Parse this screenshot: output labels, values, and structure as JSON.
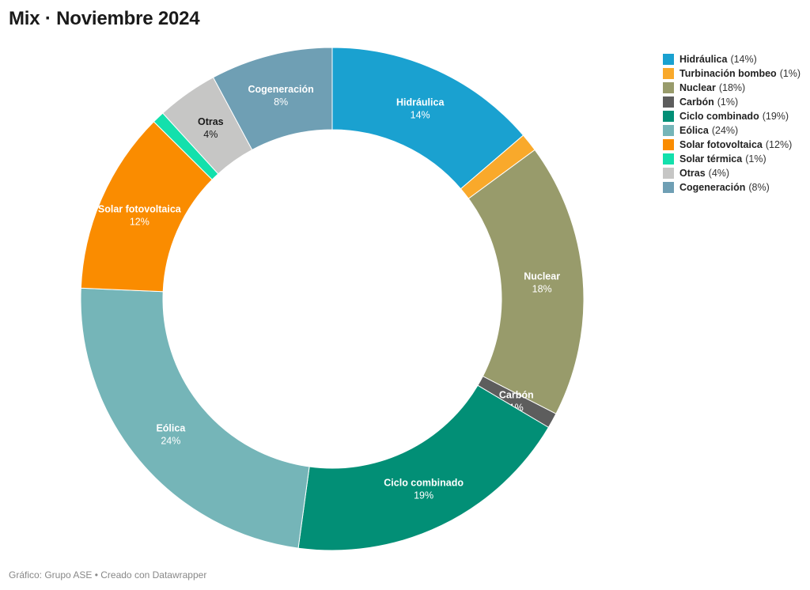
{
  "title": "Mix · Noviembre 2024",
  "footer": "Gráfico: Grupo ASE • Creado con Datawrapper",
  "chart_data": {
    "type": "pie",
    "variant": "donut",
    "title": "Mix · Noviembre 2024",
    "legend_position": "top-right",
    "slices": [
      {
        "name": "Hidráulica",
        "value": 14,
        "label": "14%",
        "color": "#1aa1d0",
        "label_color": "#ffffff",
        "legend_pct": "(14%)"
      },
      {
        "name": "Turbinación bombeo",
        "value": 1.2,
        "label": "",
        "color": "#f9a92b",
        "label_color": "#ffffff",
        "legend_pct": "(1%)"
      },
      {
        "name": "Nuclear",
        "value": 18,
        "label": "18%",
        "color": "#989b6b",
        "label_color": "#ffffff",
        "legend_pct": "(18%)"
      },
      {
        "name": "Carbón",
        "value": 1,
        "label": "1%",
        "color": "#5d5d5d",
        "label_color": "#ffffff",
        "legend_pct": "(1%)"
      },
      {
        "name": "Ciclo combinado",
        "value": 19,
        "label": "19%",
        "color": "#028f76",
        "label_color": "#ffffff",
        "legend_name": "Ciclo combinado ",
        "legend_pct": "(19%)"
      },
      {
        "name": "Eólica",
        "value": 24,
        "label": "24%",
        "color": "#75b5b8",
        "label_color": "#ffffff",
        "legend_pct": "(24%)"
      },
      {
        "name": "Solar fotovoltaica",
        "value": 12,
        "label": "12%",
        "color": "#fa8c00",
        "label_color": "#ffffff",
        "legend_pct": "(12%)"
      },
      {
        "name": "Solar térmica",
        "value": 0.8,
        "label": "",
        "color": "#13e0ac",
        "label_color": "#ffffff",
        "legend_pct": "(1%)"
      },
      {
        "name": "Otras",
        "value": 4,
        "label": "4%",
        "color": "#c6c6c5",
        "label_color": "#1a1a1a",
        "legend_pct": "(4%)"
      },
      {
        "name": "Cogeneración",
        "value": 8,
        "label": "8%",
        "color": "#6f9fb4",
        "label_color": "#ffffff",
        "legend_pct": "(8%)"
      }
    ]
  }
}
